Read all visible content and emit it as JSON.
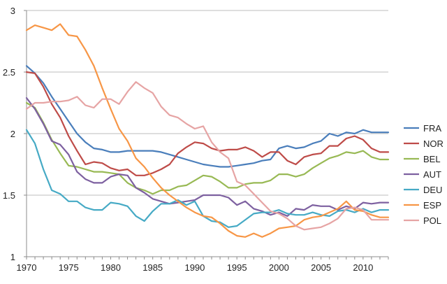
{
  "chart_data": {
    "type": "line",
    "title": "",
    "xlabel": "",
    "ylabel": "",
    "xlim": [
      1970,
      2013
    ],
    "ylim": [
      1,
      3
    ],
    "x_ticks": [
      1970,
      1975,
      1980,
      1985,
      1990,
      1995,
      2000,
      2005,
      2010
    ],
    "y_ticks": [
      1,
      1.5,
      2,
      2.5,
      3
    ],
    "y_tick_labels": [
      "1",
      "1.5",
      "2",
      "2.5",
      "3"
    ],
    "grid": "horizontal",
    "legend_position": "right",
    "x": [
      1970,
      1971,
      1972,
      1973,
      1974,
      1975,
      1976,
      1977,
      1978,
      1979,
      1980,
      1981,
      1982,
      1983,
      1984,
      1985,
      1986,
      1987,
      1988,
      1989,
      1990,
      1991,
      1992,
      1993,
      1994,
      1995,
      1996,
      1997,
      1998,
      1999,
      2000,
      2001,
      2002,
      2003,
      2004,
      2005,
      2006,
      2007,
      2008,
      2009,
      2010,
      2011,
      2012,
      2013
    ],
    "series": [
      {
        "name": "FRA",
        "color": "#4a7ebb",
        "values": [
          2.55,
          2.49,
          2.41,
          2.3,
          2.2,
          2.1,
          2.0,
          1.93,
          1.88,
          1.87,
          1.85,
          1.85,
          1.86,
          1.86,
          1.86,
          1.86,
          1.85,
          1.83,
          1.81,
          1.79,
          1.77,
          1.75,
          1.74,
          1.73,
          1.73,
          1.74,
          1.75,
          1.76,
          1.78,
          1.79,
          1.88,
          1.9,
          1.88,
          1.89,
          1.92,
          1.94,
          2.0,
          1.98,
          2.01,
          2.0,
          2.03,
          2.01,
          2.01,
          2.01
        ]
      },
      {
        "name": "NOR",
        "color": "#be4b48",
        "values": [
          2.5,
          2.49,
          2.38,
          2.24,
          2.13,
          1.98,
          1.86,
          1.75,
          1.77,
          1.76,
          1.72,
          1.7,
          1.71,
          1.66,
          1.66,
          1.68,
          1.71,
          1.75,
          1.84,
          1.89,
          1.93,
          1.92,
          1.88,
          1.86,
          1.87,
          1.87,
          1.89,
          1.86,
          1.81,
          1.85,
          1.85,
          1.78,
          1.75,
          1.81,
          1.83,
          1.84,
          1.9,
          1.9,
          1.96,
          1.98,
          1.95,
          1.88,
          1.85,
          1.85
        ]
      },
      {
        "name": "BEL",
        "color": "#98b954",
        "values": [
          2.25,
          2.21,
          2.09,
          1.95,
          1.84,
          1.74,
          1.73,
          1.71,
          1.69,
          1.69,
          1.68,
          1.67,
          1.6,
          1.56,
          1.54,
          1.51,
          1.54,
          1.54,
          1.57,
          1.58,
          1.62,
          1.66,
          1.65,
          1.61,
          1.56,
          1.56,
          1.59,
          1.6,
          1.6,
          1.62,
          1.67,
          1.67,
          1.65,
          1.67,
          1.72,
          1.76,
          1.8,
          1.82,
          1.85,
          1.84,
          1.86,
          1.81,
          1.79,
          1.79
        ]
      },
      {
        "name": "AUT",
        "color": "#7d60a0",
        "values": [
          2.29,
          2.2,
          2.08,
          1.94,
          1.91,
          1.83,
          1.69,
          1.63,
          1.6,
          1.6,
          1.65,
          1.67,
          1.66,
          1.56,
          1.52,
          1.47,
          1.45,
          1.43,
          1.44,
          1.45,
          1.46,
          1.5,
          1.5,
          1.5,
          1.48,
          1.42,
          1.45,
          1.39,
          1.37,
          1.34,
          1.36,
          1.33,
          1.39,
          1.38,
          1.42,
          1.41,
          1.41,
          1.38,
          1.41,
          1.39,
          1.44,
          1.43,
          1.44,
          1.44
        ]
      },
      {
        "name": "DEU",
        "color": "#46aac5",
        "values": [
          2.03,
          1.92,
          1.71,
          1.54,
          1.51,
          1.45,
          1.45,
          1.4,
          1.38,
          1.38,
          1.44,
          1.43,
          1.41,
          1.33,
          1.29,
          1.37,
          1.43,
          1.43,
          1.46,
          1.42,
          1.45,
          1.33,
          1.29,
          1.28,
          1.24,
          1.25,
          1.3,
          1.35,
          1.36,
          1.36,
          1.38,
          1.35,
          1.34,
          1.34,
          1.36,
          1.34,
          1.33,
          1.37,
          1.38,
          1.36,
          1.39,
          1.36,
          1.38,
          1.38
        ]
      },
      {
        "name": "ESP",
        "color": "#f79646",
        "values": [
          2.84,
          2.88,
          2.86,
          2.84,
          2.89,
          2.8,
          2.79,
          2.68,
          2.55,
          2.37,
          2.2,
          2.04,
          1.94,
          1.8,
          1.73,
          1.64,
          1.56,
          1.5,
          1.45,
          1.4,
          1.36,
          1.33,
          1.32,
          1.27,
          1.21,
          1.17,
          1.16,
          1.19,
          1.16,
          1.19,
          1.23,
          1.24,
          1.25,
          1.3,
          1.32,
          1.33,
          1.36,
          1.39,
          1.45,
          1.38,
          1.37,
          1.34,
          1.32,
          1.32
        ]
      },
      {
        "name": "POL",
        "color": "#e6a4a4",
        "values": [
          2.2,
          2.25,
          2.25,
          2.26,
          2.26,
          2.27,
          2.3,
          2.23,
          2.21,
          2.28,
          2.28,
          2.24,
          2.34,
          2.42,
          2.37,
          2.33,
          2.22,
          2.15,
          2.13,
          2.08,
          2.04,
          2.06,
          1.93,
          1.85,
          1.8,
          1.61,
          1.58,
          1.51,
          1.44,
          1.37,
          1.35,
          1.31,
          1.25,
          1.22,
          1.23,
          1.24,
          1.27,
          1.31,
          1.39,
          1.4,
          1.38,
          1.3,
          1.3,
          1.3
        ]
      }
    ]
  }
}
